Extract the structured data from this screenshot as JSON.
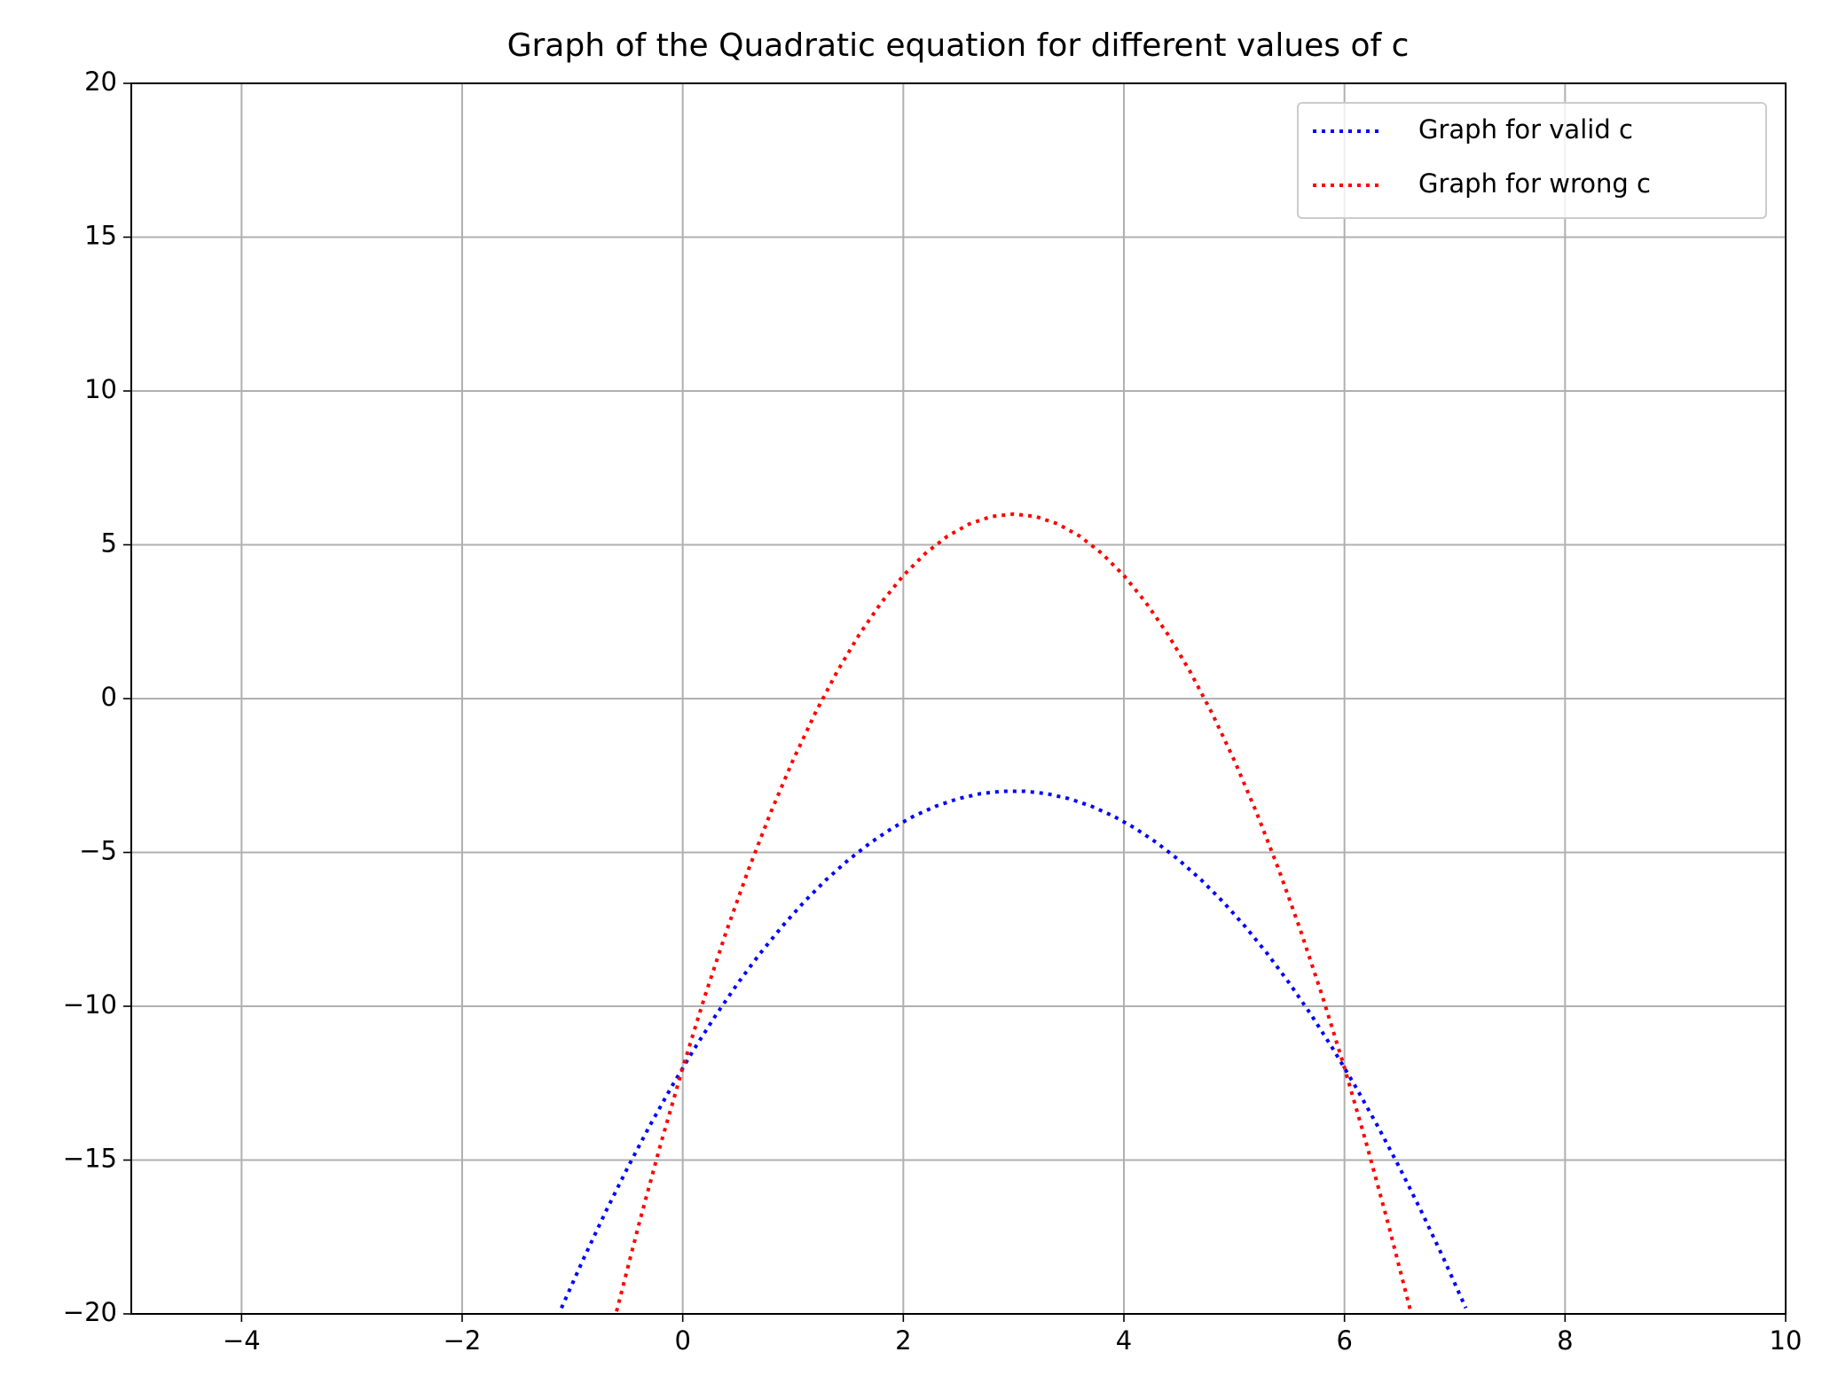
{
  "chart_data": {
    "type": "line",
    "title": "Graph of the Quadratic equation for different values of c",
    "xlim": [
      -5,
      10
    ],
    "xticks": [
      {
        "value": -4,
        "label": "−4"
      },
      {
        "value": -2,
        "label": "−2"
      },
      0,
      2,
      4,
      6,
      8,
      10
    ],
    "ylim": [
      -20,
      20
    ],
    "yticks": [
      {
        "value": -20,
        "label": "−20"
      },
      {
        "value": -15,
        "label": "−15"
      },
      {
        "value": -10,
        "label": "−10"
      },
      {
        "value": -5,
        "label": "−5"
      },
      0,
      5,
      10,
      15,
      20
    ],
    "grid": true,
    "legend": "upper right",
    "series": [
      {
        "name": "Graph for valid c",
        "color": "#0000ff",
        "x": [
          -1.1,
          -0.9,
          -0.7,
          -0.5,
          -0.3,
          -0.1,
          0.1,
          0.3,
          0.5,
          0.7,
          0.9,
          1.1,
          1.3,
          1.5,
          1.7,
          1.9,
          2.1,
          2.3,
          2.5,
          2.7,
          2.9,
          3.1,
          3.3,
          3.5,
          3.7,
          3.9,
          4.1,
          4.3,
          4.5,
          4.7,
          4.9,
          5.1,
          5.3,
          5.5,
          5.7,
          5.9,
          6.1,
          6.3,
          6.5,
          6.7,
          6.9,
          7.1
        ],
        "values": [
          -19.81,
          -18.21,
          -16.69,
          -15.25,
          -13.89,
          -12.61,
          -11.41,
          -10.29,
          -9.25,
          -8.29,
          -7.41,
          -6.61,
          -5.89,
          -5.25,
          -4.69,
          -4.21,
          -3.81,
          -3.49,
          -3.25,
          -3.09,
          -3.01,
          -3.01,
          -3.09,
          -3.25,
          -3.49,
          -3.81,
          -4.21,
          -4.69,
          -5.25,
          -5.89,
          -6.61,
          -7.41,
          -8.29,
          -9.25,
          -10.29,
          -11.41,
          -12.61,
          -13.89,
          -15.25,
          -16.69,
          -18.21,
          -19.81
        ]
      },
      {
        "name": "Graph for wrong c",
        "color": "#ff0000",
        "x": [
          -0.6,
          -0.4,
          -0.2,
          0,
          0.2,
          0.4,
          0.6,
          0.8,
          1,
          1.2,
          1.4,
          1.6,
          1.8,
          2,
          2.2,
          2.4,
          2.6,
          2.8,
          3,
          3.2,
          3.4,
          3.6,
          3.8,
          4,
          4.2,
          4.4,
          4.6,
          4.8,
          5,
          5.2,
          5.4,
          5.6,
          5.8,
          6,
          6.2,
          6.4,
          6.6
        ],
        "values": [
          -19.92,
          -17.12,
          -14.48,
          -12,
          -9.68,
          -7.52,
          -5.52,
          -3.68,
          -2,
          -0.48,
          0.88,
          2.08,
          3.12,
          4,
          4.72,
          5.28,
          5.68,
          5.92,
          6,
          5.92,
          5.68,
          5.28,
          4.72,
          4,
          3.12,
          2.08,
          0.88,
          -0.48,
          -2,
          -3.68,
          -5.52,
          -7.52,
          -9.68,
          -12,
          -14.48,
          -17.12,
          -19.92
        ]
      }
    ]
  }
}
